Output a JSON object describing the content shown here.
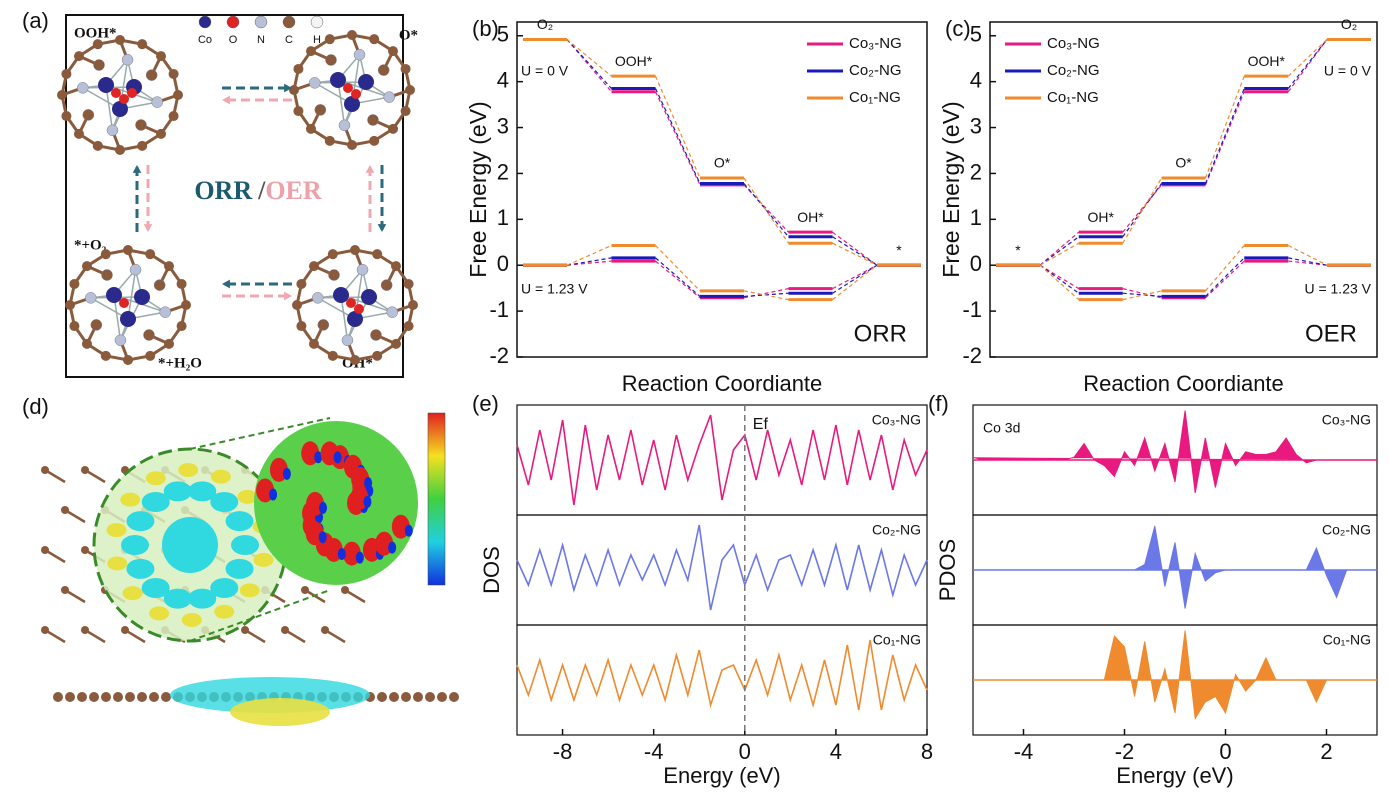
{
  "panel_a": {
    "label": "(a)",
    "ooh": "OOH*",
    "o": "O*",
    "o2": "*+O₂",
    "h2o": "*+H₂O",
    "oh": "OH*",
    "orr": "ORR",
    "sep": "/",
    "oer": "OER",
    "atoms": [
      "Co",
      "O",
      "N",
      "C",
      "H"
    ]
  },
  "panel_d": {
    "label": "(d)"
  },
  "chart_data": [
    {
      "label": "(b)",
      "type": "energy-levels",
      "x_label": "Reaction Coordiante",
      "y_label": "Free Energy (eV)",
      "annotation": "ORR",
      "condition_labels": [
        "U = 0 V",
        "U = 1.23 V"
      ],
      "legend": "upper right",
      "states": [
        "O₂",
        "OOH*",
        "O*",
        "OH*",
        "*"
      ],
      "ylim": [
        -2,
        5.3
      ],
      "yticks": [
        -2,
        -1,
        0,
        1,
        2,
        3,
        4,
        5
      ],
      "series": [
        {
          "name": "Co₃-NG",
          "color": "#e8197f",
          "values": [
            4.92,
            3.78,
            1.75,
            0.72,
            0
          ],
          "values_u123": [
            0,
            0.09,
            -0.71,
            -0.51,
            0
          ]
        },
        {
          "name": "Co₂-NG",
          "color": "#1a1ab8",
          "values": [
            4.92,
            3.85,
            1.78,
            0.62,
            0
          ],
          "values_u123": [
            0,
            0.16,
            -0.68,
            -0.61,
            0
          ]
        },
        {
          "name": "Co₁-NG",
          "color": "#ef8a2e",
          "values": [
            4.92,
            4.12,
            1.9,
            0.48,
            0
          ],
          "values_u123": [
            0,
            0.43,
            -0.56,
            -0.75,
            0
          ]
        }
      ]
    },
    {
      "label": "(c)",
      "type": "energy-levels",
      "x_label": "Reaction Coordiante",
      "y_label": "Free Energy (eV)",
      "annotation": "OER",
      "condition_labels": [
        "U = 0 V",
        "U = 1.23 V"
      ],
      "legend": "upper left",
      "states": [
        "*",
        "OH*",
        "O*",
        "OOH*",
        "O₂"
      ],
      "ylim": [
        -2,
        5.3
      ],
      "yticks": [
        -2,
        -1,
        0,
        1,
        2,
        3,
        4,
        5
      ],
      "series": [
        {
          "name": "Co₃-NG",
          "color": "#e8197f",
          "values": [
            0,
            0.72,
            1.75,
            3.78,
            4.92
          ],
          "values_u123": [
            0,
            -0.51,
            -0.71,
            0.09,
            0
          ]
        },
        {
          "name": "Co₂-NG",
          "color": "#1a1ab8",
          "values": [
            0,
            0.62,
            1.78,
            3.85,
            4.92
          ],
          "values_u123": [
            0,
            -0.61,
            -0.68,
            0.16,
            0
          ]
        },
        {
          "name": "Co₁-NG",
          "color": "#ef8a2e",
          "values": [
            0,
            0.48,
            1.9,
            4.12,
            4.92
          ],
          "values_u123": [
            0,
            -0.75,
            -0.56,
            0.43,
            0
          ]
        }
      ]
    },
    {
      "label": "(e)",
      "type": "line",
      "x_label": "Energy (eV)",
      "y_label": "DOS",
      "fermi_label": "Ef",
      "fermi_level": 0,
      "xlim": [
        -10,
        8
      ],
      "xticks": [
        -8,
        -4,
        0,
        4,
        8
      ],
      "x": [
        -10,
        -9.5,
        -9,
        -8.5,
        -8,
        -7.5,
        -7,
        -6.5,
        -6,
        -5.5,
        -5,
        -4.5,
        -4,
        -3.5,
        -3,
        -2.5,
        -2,
        -1.5,
        -1,
        -0.5,
        0,
        0.5,
        1,
        1.5,
        2,
        2.5,
        3,
        3.5,
        4,
        4.5,
        5,
        5.5,
        6,
        6.5,
        7,
        7.5,
        8
      ],
      "series": [
        {
          "name": "Co₃-NG",
          "color": "#e8197f",
          "values": [
            0.3,
            -0.5,
            0.6,
            -0.4,
            0.8,
            -0.9,
            0.7,
            -0.6,
            0.5,
            -0.4,
            0.6,
            -0.5,
            0.4,
            -0.6,
            0.5,
            -0.4,
            0.3,
            0.9,
            -0.8,
            0.2,
            0.5,
            -0.4,
            0.6,
            -0.3,
            0.4,
            -0.5,
            0.6,
            -0.4,
            0.7,
            -0.5,
            0.6,
            -0.4,
            0.5,
            -0.6,
            0.4,
            -0.3,
            0.2
          ]
        },
        {
          "name": "Co₂-NG",
          "color": "#6a78e8",
          "values": [
            0.2,
            -0.3,
            0.4,
            -0.3,
            0.5,
            -0.4,
            0.3,
            -0.3,
            0.4,
            -0.3,
            0.3,
            -0.2,
            0.3,
            -0.3,
            0.4,
            -0.2,
            0.9,
            -0.8,
            0.2,
            0.5,
            -0.3,
            0.3,
            -0.4,
            0.2,
            0.3,
            -0.3,
            0.4,
            -0.3,
            0.5,
            -0.4,
            0.5,
            -0.4,
            0.4,
            -0.5,
            0.3,
            -0.3,
            0.2
          ]
        },
        {
          "name": "Co₁-NG",
          "color": "#ef8a2e",
          "values": [
            0.3,
            -0.3,
            0.4,
            -0.4,
            0.3,
            -0.4,
            0.3,
            -0.3,
            0.4,
            -0.4,
            0.3,
            -0.3,
            0.3,
            -0.4,
            0.5,
            -0.3,
            0.6,
            -0.5,
            0.2,
            0.3,
            -0.2,
            0.4,
            -0.3,
            0.5,
            -0.4,
            0.3,
            -0.5,
            0.4,
            -0.5,
            0.7,
            -0.6,
            0.8,
            -0.6,
            0.5,
            -0.4,
            0.3,
            -0.2
          ]
        }
      ]
    },
    {
      "label": "(f)",
      "type": "area",
      "x_label": "Energy (eV)",
      "y_label": "PDOS",
      "annotation": "Co 3d",
      "xlim": [
        -5,
        3
      ],
      "xticks": [
        -4,
        -2,
        0,
        2
      ],
      "x": [
        -5,
        -4.8,
        -4.6,
        -4.4,
        -4.2,
        -4,
        -3.8,
        -3.6,
        -3.4,
        -3.2,
        -3,
        -2.8,
        -2.6,
        -2.4,
        -2.2,
        -2,
        -1.8,
        -1.6,
        -1.4,
        -1.2,
        -1,
        -0.8,
        -0.6,
        -0.4,
        -0.2,
        0,
        0.2,
        0.4,
        0.6,
        0.8,
        1,
        1.2,
        1.4,
        1.6,
        1.8,
        2,
        2.2,
        2.4,
        2.6,
        2.8,
        3
      ],
      "series": [
        {
          "name": "Co₃-NG",
          "color": "#e8197f",
          "values": [
            0.05,
            0,
            0,
            0,
            0,
            0,
            0,
            0,
            0,
            0,
            0.05,
            0.3,
            0,
            -0.1,
            -0.3,
            0.15,
            -0.1,
            0.4,
            -0.2,
            0.3,
            -0.4,
            0.9,
            -0.6,
            0.4,
            -0.5,
            0.3,
            -0.1,
            0.15,
            0.1,
            0.1,
            0.15,
            0.4,
            0.1,
            -0.05,
            0,
            0,
            0,
            0,
            0,
            0,
            0
          ]
        },
        {
          "name": "Co₂-NG",
          "color": "#6a78e8",
          "values": [
            0,
            0,
            0,
            0,
            0,
            0,
            0,
            0,
            0,
            0,
            0,
            0,
            0,
            0,
            0,
            0,
            0,
            0.1,
            0.8,
            -0.3,
            0.5,
            -0.7,
            0.3,
            -0.2,
            -0.05,
            0,
            0,
            0,
            0,
            0,
            0,
            0,
            0,
            0,
            0.4,
            -0.1,
            -0.5,
            0,
            0,
            0,
            0
          ]
        },
        {
          "name": "Co₁-NG",
          "color": "#ef8a2e",
          "values": [
            0,
            0,
            0,
            0,
            0,
            0,
            0,
            0,
            0,
            0,
            0,
            0,
            0,
            0,
            0.8,
            0.6,
            -0.3,
            0.7,
            -0.4,
            0.2,
            -0.6,
            0.9,
            -0.7,
            -0.4,
            -0.3,
            -0.6,
            0.1,
            -0.2,
            0,
            0.4,
            0,
            0,
            0,
            0,
            -0.4,
            0,
            0,
            0,
            0,
            0,
            0
          ]
        }
      ]
    }
  ]
}
